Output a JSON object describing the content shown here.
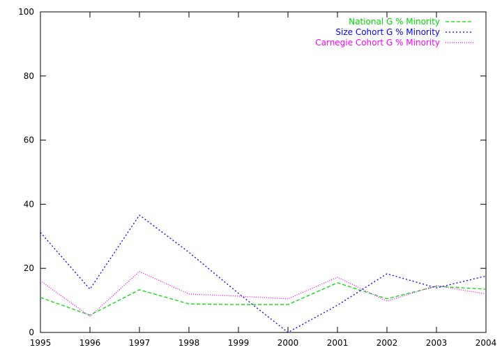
{
  "chart_data": {
    "type": "line",
    "x": [
      1995,
      1996,
      1997,
      1998,
      1999,
      2000,
      2001,
      2002,
      2003,
      2004
    ],
    "series": [
      {
        "name": "National G % Minority",
        "color": "#00dd00",
        "values": [
          10.9,
          5.4,
          13.3,
          8.9,
          8.7,
          8.7,
          15.5,
          10.5,
          14.4,
          13.5
        ]
      },
      {
        "name": "Size Cohort G % Minority",
        "color": "#0000ff",
        "values": [
          31.2,
          13.5,
          36.6,
          25.0,
          12.2,
          0,
          8.5,
          18.3,
          13.9,
          17.6
        ]
      },
      {
        "name": "Carnegie Cohort G % Minority",
        "color": "#ff00ff",
        "values": [
          16.1,
          5.0,
          19.0,
          12.0,
          11.3,
          10.5,
          17.2,
          9.8,
          14.6,
          12.0
        ]
      }
    ],
    "xlim": [
      1995,
      2004
    ],
    "xticks": [
      1995,
      1996,
      1997,
      1998,
      1999,
      2000,
      2001,
      2002,
      2003,
      2004
    ],
    "ylim": [
      0,
      100
    ],
    "yticks": [
      0,
      20,
      40,
      60,
      80,
      100
    ],
    "legend": "top-right"
  }
}
